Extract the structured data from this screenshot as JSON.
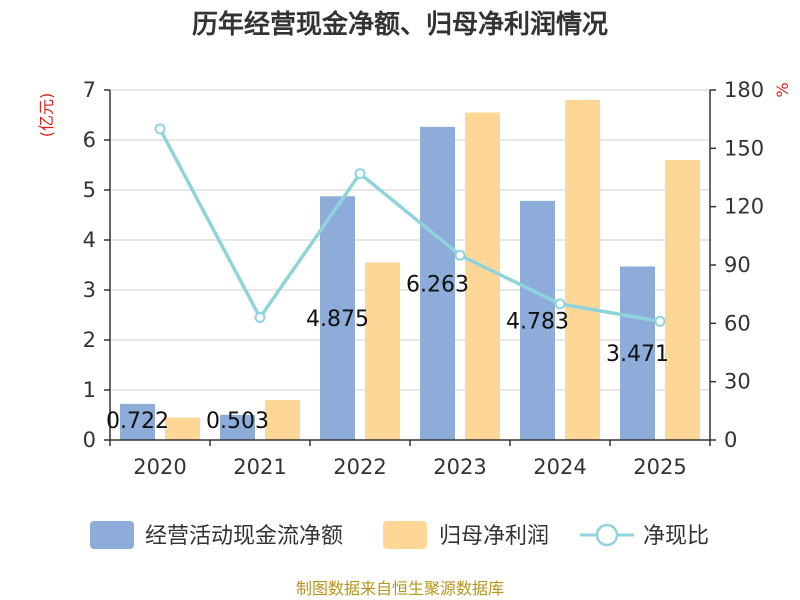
{
  "colors": {
    "cash_flow": "#8eacd9",
    "net_profit": "#fed796",
    "ratio": "#8fd3dc",
    "unit_label": "#e0201b",
    "source": "#b8941f"
  },
  "source": "制图数据来自恒生聚源数据库",
  "chart_data": {
    "type": "bar",
    "title": "历年经营现金净额、归母净利润情况",
    "categories": [
      "2020",
      "2021",
      "2022",
      "2023",
      "2024",
      "2025"
    ],
    "series": [
      {
        "name": "经营活动现金流净额",
        "type": "bar",
        "axis": "left",
        "values": [
          0.722,
          0.503,
          4.875,
          6.263,
          4.783,
          3.471
        ],
        "labels": [
          "0.722",
          "0.503",
          "4.875",
          "6.263",
          "4.783",
          "3.471"
        ]
      },
      {
        "name": "归母净利润",
        "type": "bar",
        "axis": "left",
        "values": [
          0.45,
          0.8,
          3.55,
          6.55,
          6.8,
          5.6
        ]
      },
      {
        "name": "净现比",
        "type": "line",
        "axis": "right",
        "values": [
          160,
          63,
          137,
          95,
          70,
          61
        ]
      }
    ],
    "y_left": {
      "label": "(亿元)",
      "min": 0,
      "max": 7,
      "ticks": [
        "0",
        "1",
        "2",
        "3",
        "4",
        "5",
        "6",
        "7"
      ]
    },
    "y_right": {
      "label": "%",
      "min": 0,
      "max": 180,
      "ticks": [
        "0",
        "30",
        "60",
        "90",
        "120",
        "150",
        "180"
      ]
    },
    "grid": true,
    "legend_position": "bottom"
  }
}
